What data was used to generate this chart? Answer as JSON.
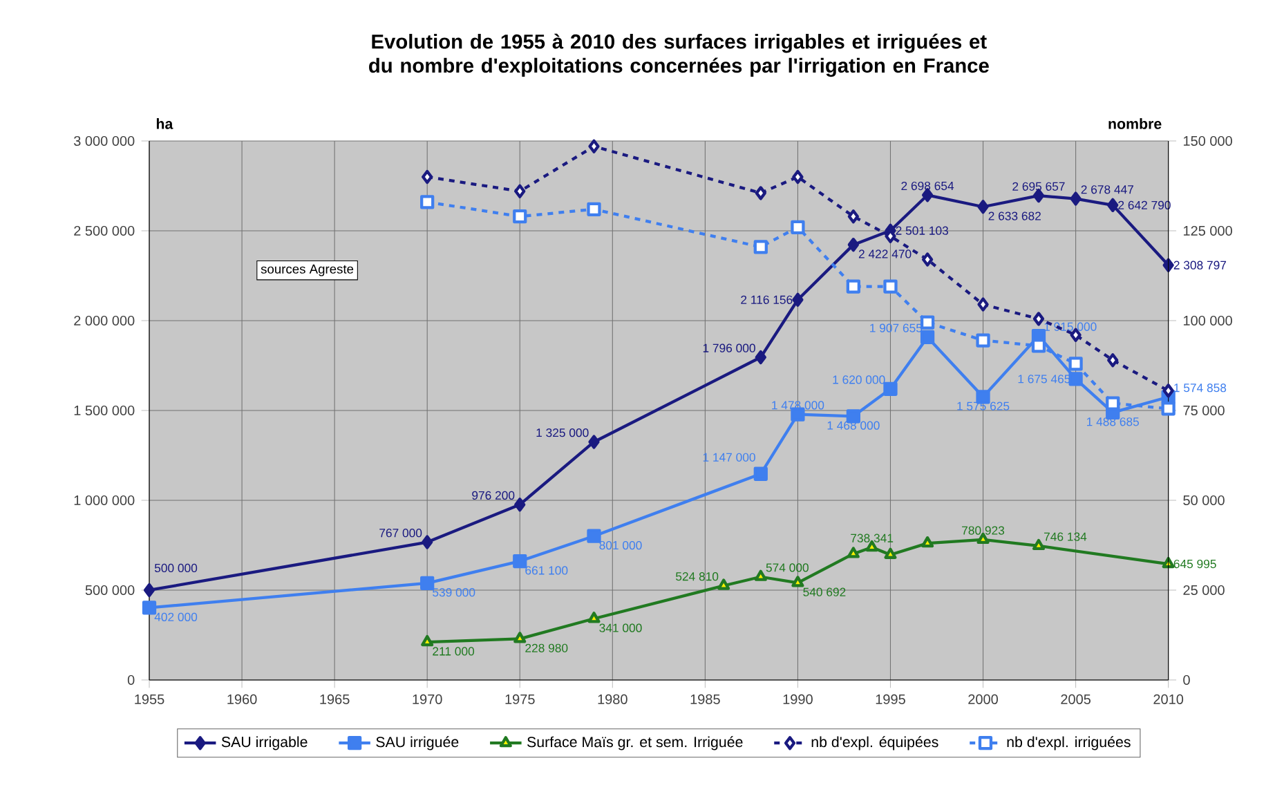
{
  "chart_data": {
    "type": "line",
    "title": "Evolution de 1955 à 2010 des surfaces irrigables et irriguées et du nombre d'exploitations concernées par l'irrigation en France",
    "ylabel": "ha",
    "y2label": "nombre",
    "annotations": [
      "sources Agreste"
    ],
    "xlim": [
      1955,
      2010
    ],
    "xticks": [
      1955,
      1960,
      1965,
      1970,
      1975,
      1980,
      1985,
      1990,
      1995,
      2000,
      2005,
      2010
    ],
    "ylim": [
      0,
      3000000
    ],
    "yticks": [
      0,
      {
        "value": 500000,
        "label": "500 000"
      },
      {
        "value": 1000000,
        "label": "1 000 000"
      },
      {
        "value": 1500000,
        "label": "1 500 000"
      },
      {
        "value": 2000000,
        "label": "2 000 000"
      },
      {
        "value": 2500000,
        "label": "2 500 000"
      },
      {
        "value": 3000000,
        "label": "3 000 000"
      }
    ],
    "y2lim": [
      0,
      150000
    ],
    "y2ticks": [
      0,
      {
        "value": 25000,
        "label": "25 000"
      },
      {
        "value": 50000,
        "label": "50 000"
      },
      {
        "value": 75000,
        "label": "75 000"
      },
      {
        "value": 100000,
        "label": "100 000"
      },
      {
        "value": 125000,
        "label": "125 000"
      },
      {
        "value": 150000,
        "label": "150 000"
      }
    ],
    "grid": true,
    "legend": "bottom",
    "series": [
      {
        "name": "SAU irrigable",
        "color": "#1a1a80",
        "marker": "diamond",
        "line_style": "solid",
        "x": [
          1955,
          1970,
          1975,
          1979,
          1988,
          1990,
          1993,
          1995,
          1997,
          2000,
          2003,
          2005,
          2007,
          2010
        ],
        "values": [
          500000,
          767000,
          976200,
          1325000,
          1796000,
          2116156,
          2422470,
          2501103,
          2698654,
          2633682,
          2695657,
          2678447,
          2642790,
          2308797
        ],
        "value_labels": [
          "500 000",
          "767 000",
          "976 200",
          "1 325 000",
          "1 796 000",
          "2 116 156",
          "2 422 470",
          "2 501 103",
          "2 698 654",
          "2 633 682",
          "2 695 657",
          "2 678 447",
          "2 642 790",
          "2 308 797"
        ]
      },
      {
        "name": "SAU irriguée",
        "color": "#3f7fef",
        "marker": "square",
        "line_style": "solid",
        "x": [
          1955,
          1970,
          1975,
          1979,
          1988,
          1990,
          1993,
          1995,
          1997,
          2000,
          2003,
          2005,
          2007,
          2010
        ],
        "values": [
          402000,
          539000,
          661100,
          801000,
          1147000,
          1478000,
          1468000,
          1620000,
          1907655,
          1575625,
          1915000,
          1675465,
          1488685,
          1574858
        ],
        "value_labels": [
          "402 000",
          "539 000",
          "661 100",
          "801 000",
          "1 147 000",
          "1 478 000",
          "1 468 000",
          "1 620 000",
          "1 907 655",
          "1 575 625",
          "1 915 000",
          "1 675 465",
          "1 488 685",
          "1 574 858"
        ]
      },
      {
        "name": "Surface Maïs gr. et sem. Irriguée",
        "color": "#217a21",
        "marker": "triangle",
        "line_style": "solid",
        "x": [
          1970,
          1975,
          1979,
          1986,
          1988,
          1990,
          1993,
          1994,
          1995,
          1997,
          2000,
          2003,
          2010
        ],
        "values": [
          211000,
          228980,
          341000,
          524810,
          574000,
          540692,
          702000,
          738341,
          697000,
          761000,
          780923,
          746134,
          645995
        ],
        "value_labels": [
          "211 000",
          "228 980",
          "341 000",
          "524 810",
          "574 000",
          "540 692",
          null,
          "738 341",
          null,
          null,
          "780 923",
          "746 134",
          "645 995"
        ]
      },
      {
        "name": "nb d'expl. équipées",
        "color": "#1a1a80",
        "marker": "diamond",
        "line_style": "dashed",
        "axis": "y2",
        "x": [
          1970,
          1975,
          1979,
          1988,
          1990,
          1993,
          1995,
          1997,
          2000,
          2003,
          2005,
          2007,
          2010
        ],
        "values": [
          140000,
          136000,
          148500,
          135500,
          140000,
          129000,
          123500,
          117000,
          104500,
          100500,
          96000,
          89000,
          80500
        ]
      },
      {
        "name": "nb d'expl. irriguées",
        "color": "#3f7fef",
        "marker": "square",
        "line_style": "dashed",
        "axis": "y2",
        "x": [
          1970,
          1975,
          1979,
          1988,
          1990,
          1993,
          1995,
          1997,
          2000,
          2003,
          2005,
          2007,
          2010
        ],
        "values": [
          133000,
          129000,
          131000,
          120500,
          126000,
          109500,
          109500,
          99500,
          94500,
          93000,
          88000,
          77000,
          75500
        ]
      }
    ]
  }
}
